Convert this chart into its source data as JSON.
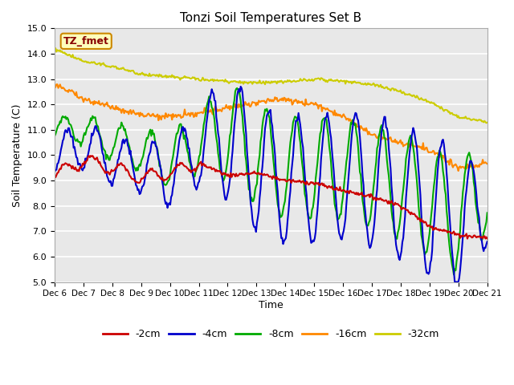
{
  "title": "Tonzi Soil Temperatures Set B",
  "xlabel": "Time",
  "ylabel": "Soil Temperature (C)",
  "ylim": [
    5.0,
    15.0
  ],
  "yticks": [
    5.0,
    6.0,
    7.0,
    8.0,
    9.0,
    10.0,
    11.0,
    12.0,
    13.0,
    14.0,
    15.0
  ],
  "plot_bg_color": "#e8e8e8",
  "label_box": "TZ_fmet",
  "series": {
    "neg2cm": {
      "color": "#cc0000",
      "label": "-2cm",
      "linewidth": 1.5
    },
    "neg4cm": {
      "color": "#0000cc",
      "label": "-4cm",
      "linewidth": 1.5
    },
    "neg8cm": {
      "color": "#00aa00",
      "label": "-8cm",
      "linewidth": 1.5
    },
    "neg16cm": {
      "color": "#ff8800",
      "label": "-16cm",
      "linewidth": 1.5
    },
    "neg32cm": {
      "color": "#cccc00",
      "label": "-32cm",
      "linewidth": 1.5
    }
  },
  "xtick_labels": [
    "Dec 6",
    "Dec 7",
    "Dec 8",
    "Dec 9",
    "Dec 10",
    "Dec 11",
    "Dec 12",
    "Dec 13",
    "Dec 14",
    "Dec 15",
    "Dec 16",
    "Dec 17",
    "Dec 18",
    "Dec 19",
    "Dec 20",
    "Dec 21"
  ],
  "n_points": 480
}
